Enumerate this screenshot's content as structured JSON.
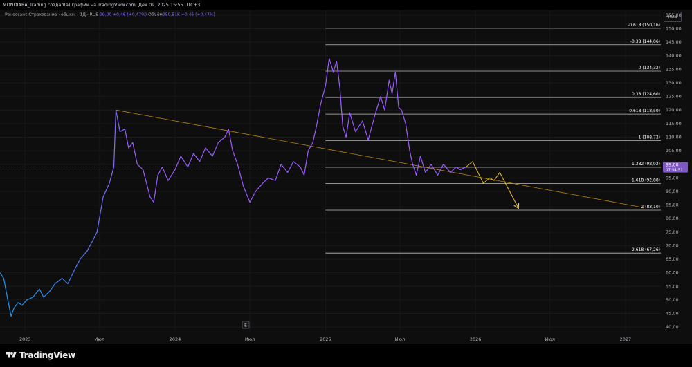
{
  "header": {
    "title": "MONDIARA_Trading создал(а) график на TradingView.com, Дек 09, 2025 15:55 UTC+3"
  },
  "legend": {
    "symbol": "Ренессанс Страхование · обыкн. · 1Д · RUS",
    "price": "99,00",
    "change": "+0,46 (+0,47%)",
    "volume_label": "Объём",
    "volume": "950,51K",
    "volume_change": "+0,46 (+0,47%)"
  },
  "currency": "RUB",
  "brand": {
    "name": "TradingView"
  },
  "colors": {
    "background": "#0e0e0e",
    "price_line_start": "#2196f3",
    "price_line_end": "#9b5cff",
    "trendline": "#b8860b",
    "projection": "#e6c229",
    "fib_line": "#bdbdbd",
    "price_badge": "#7e57c2"
  },
  "chart_data": {
    "type": "line",
    "x_axis": {
      "tick_labels": [
        "2023",
        "Июл",
        "2024",
        "Июл",
        "2025",
        "Июл",
        "2026",
        "Июл",
        "2027"
      ]
    },
    "y_axis": {
      "ylim": [
        38,
        157
      ],
      "ticks": [
        40,
        45,
        50,
        55,
        60,
        65,
        70,
        75,
        80,
        85,
        90,
        95,
        100,
        105,
        110,
        115,
        120,
        125,
        130,
        135,
        140,
        145,
        150,
        155
      ],
      "tick_labels": [
        "40,00",
        "45,00",
        "50,00",
        "55,00",
        "60,00",
        "65,00",
        "70,00",
        "75,00",
        "80,00",
        "85,00",
        "90,00",
        "95,00",
        "100,00",
        "105,00",
        "110,00",
        "115,00",
        "120,00",
        "125,00",
        "130,00",
        "135,00",
        "140,00",
        "145,00",
        "150,00",
        "155,00"
      ]
    },
    "current_price": {
      "value": 99.0,
      "label": "99,00",
      "countdown": "07:54:51"
    },
    "series": [
      {
        "points": [
          [
            "2022-11-01",
            60
          ],
          [
            "2022-11-10",
            58
          ],
          [
            "2022-11-20",
            50
          ],
          [
            "2022-11-28",
            44
          ],
          [
            "2022-12-05",
            47
          ],
          [
            "2022-12-15",
            49
          ],
          [
            "2022-12-25",
            48
          ],
          [
            "2023-01-05",
            50
          ],
          [
            "2023-01-20",
            51
          ],
          [
            "2023-02-05",
            54
          ],
          [
            "2023-02-15",
            51
          ],
          [
            "2023-03-01",
            53
          ],
          [
            "2023-03-15",
            56
          ],
          [
            "2023-04-01",
            58
          ],
          [
            "2023-04-15",
            56
          ],
          [
            "2023-05-01",
            61
          ],
          [
            "2023-05-15",
            65
          ],
          [
            "2023-06-01",
            68
          ],
          [
            "2023-06-15",
            72
          ],
          [
            "2023-06-25",
            75
          ],
          [
            "2023-07-10",
            88
          ],
          [
            "2023-07-25",
            93
          ],
          [
            "2023-08-05",
            99
          ],
          [
            "2023-08-10",
            120
          ],
          [
            "2023-08-20",
            112
          ],
          [
            "2023-09-01",
            113
          ],
          [
            "2023-09-10",
            106
          ],
          [
            "2023-09-20",
            108
          ],
          [
            "2023-10-01",
            100
          ],
          [
            "2023-10-15",
            98
          ],
          [
            "2023-11-01",
            88
          ],
          [
            "2023-11-10",
            86
          ],
          [
            "2023-11-20",
            96
          ],
          [
            "2023-12-01",
            99
          ],
          [
            "2023-12-15",
            94
          ],
          [
            "2024-01-01",
            98
          ],
          [
            "2024-01-15",
            103
          ],
          [
            "2024-02-01",
            99
          ],
          [
            "2024-02-15",
            104
          ],
          [
            "2024-03-01",
            101
          ],
          [
            "2024-03-15",
            106
          ],
          [
            "2024-04-01",
            103
          ],
          [
            "2024-04-15",
            108
          ],
          [
            "2024-05-01",
            110
          ],
          [
            "2024-05-10",
            113
          ],
          [
            "2024-05-20",
            105
          ],
          [
            "2024-06-01",
            100
          ],
          [
            "2024-06-15",
            92
          ],
          [
            "2024-07-01",
            86
          ],
          [
            "2024-07-15",
            90
          ],
          [
            "2024-08-01",
            93
          ],
          [
            "2024-08-15",
            95
          ],
          [
            "2024-09-01",
            94
          ],
          [
            "2024-09-15",
            100
          ],
          [
            "2024-10-01",
            97
          ],
          [
            "2024-10-15",
            101
          ],
          [
            "2024-11-01",
            99
          ],
          [
            "2024-11-10",
            96
          ],
          [
            "2024-11-20",
            105
          ],
          [
            "2024-12-01",
            108
          ],
          [
            "2024-12-10",
            114
          ],
          [
            "2024-12-20",
            122
          ],
          [
            "2025-01-01",
            129
          ],
          [
            "2025-01-10",
            139
          ],
          [
            "2025-01-20",
            134
          ],
          [
            "2025-01-28",
            138
          ],
          [
            "2025-02-05",
            128
          ],
          [
            "2025-02-12",
            114
          ],
          [
            "2025-02-20",
            110
          ],
          [
            "2025-03-01",
            119
          ],
          [
            "2025-03-15",
            112
          ],
          [
            "2025-04-01",
            116
          ],
          [
            "2025-04-15",
            109
          ],
          [
            "2025-05-01",
            118
          ],
          [
            "2025-05-15",
            125
          ],
          [
            "2025-05-25",
            120
          ],
          [
            "2025-06-05",
            131
          ],
          [
            "2025-06-12",
            126
          ],
          [
            "2025-06-20",
            134
          ],
          [
            "2025-06-28",
            121
          ],
          [
            "2025-07-05",
            120
          ],
          [
            "2025-07-15",
            115
          ],
          [
            "2025-07-25",
            105
          ],
          [
            "2025-08-01",
            100
          ],
          [
            "2025-08-10",
            96
          ],
          [
            "2025-08-20",
            103
          ],
          [
            "2025-09-01",
            97
          ],
          [
            "2025-09-15",
            100
          ],
          [
            "2025-10-01",
            96
          ],
          [
            "2025-10-15",
            100
          ],
          [
            "2025-11-01",
            97
          ],
          [
            "2025-11-15",
            99
          ],
          [
            "2025-11-25",
            98
          ],
          [
            "2025-12-09",
            99
          ]
        ]
      }
    ],
    "trendline": {
      "start": [
        "2023-08-10",
        120
      ],
      "end": [
        "2027-02-15",
        84
      ]
    },
    "projection": [
      [
        "2025-12-09",
        99
      ],
      [
        "2025-12-25",
        101
      ],
      [
        "2026-01-20",
        93
      ],
      [
        "2026-02-05",
        95
      ],
      [
        "2026-02-15",
        94
      ],
      [
        "2026-03-01",
        97
      ],
      [
        "2026-04-15",
        84
      ]
    ],
    "fib_levels": [
      {
        "ratio": "-0,618",
        "value": 150.16,
        "label": "-0,618 (150,16)"
      },
      {
        "ratio": "-0,38",
        "value": 144.06,
        "label": "-0,38 (144,06)"
      },
      {
        "ratio": "0",
        "value": 134.32,
        "label": "0 (134,32)"
      },
      {
        "ratio": "0,38",
        "value": 124.6,
        "label": "0,38 (124,60)"
      },
      {
        "ratio": "0,618",
        "value": 118.5,
        "label": "0,618 (118,50)"
      },
      {
        "ratio": "1",
        "value": 108.72,
        "label": "1 (108,72)"
      },
      {
        "ratio": "1,382",
        "value": 98.92,
        "label": "1,382 (98,92)"
      },
      {
        "ratio": "1,618",
        "value": 92.88,
        "label": "1,618 (92,88)"
      },
      {
        "ratio": "2",
        "value": 83.1,
        "label": "2 (83,10)"
      },
      {
        "ratio": "2,618",
        "value": 67.26,
        "label": "2,618 (67,26)"
      }
    ],
    "fib_start_date": "2025-01-01",
    "marker_label": "E"
  }
}
